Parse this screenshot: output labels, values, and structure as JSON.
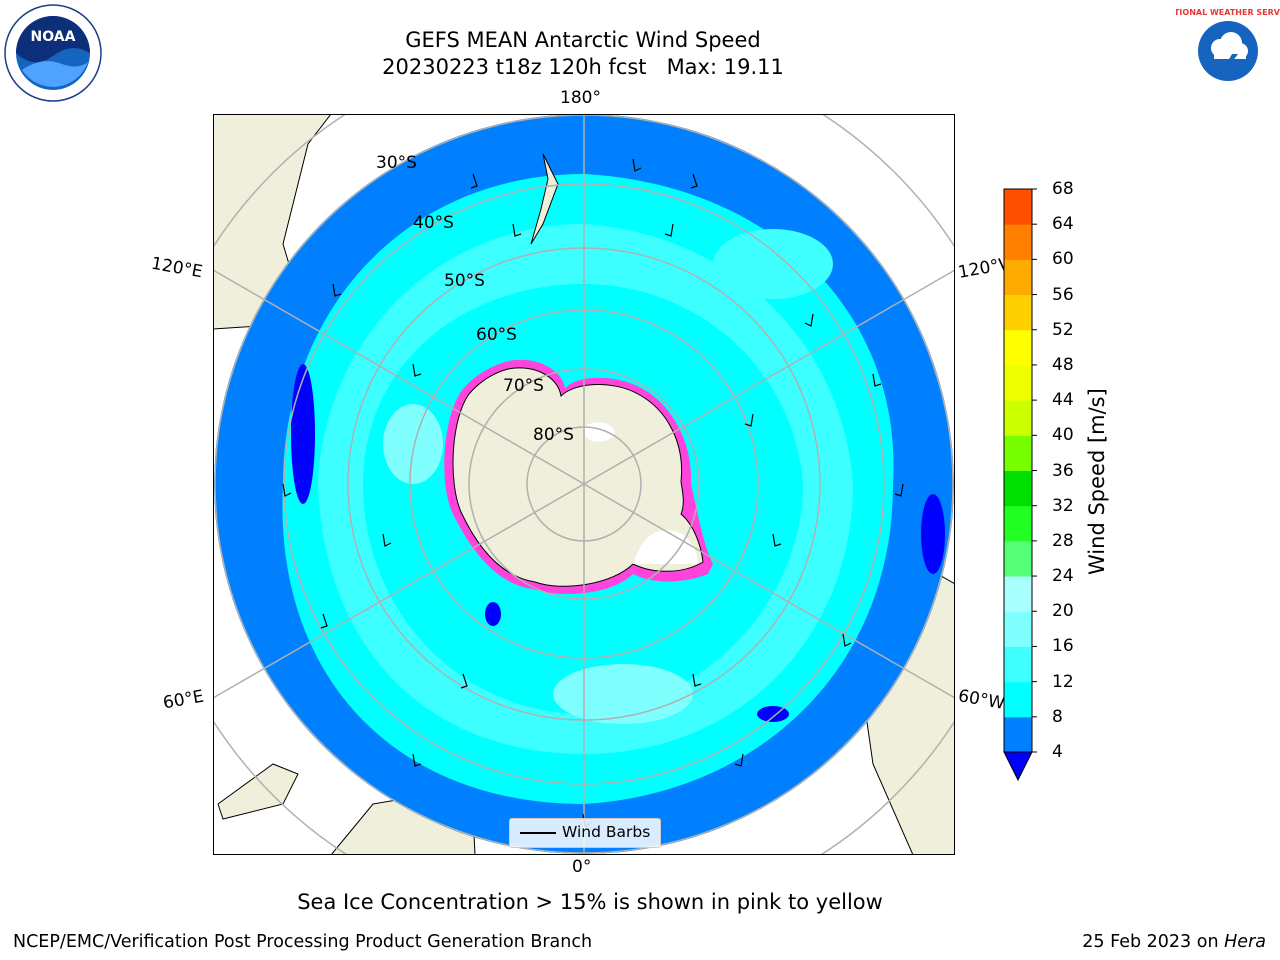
{
  "title_line1": "GEFS MEAN Antarctic Wind Speed",
  "title_line2": "20230223 t18z 120h fcst   Max: 19.11",
  "longitude_labels": {
    "top": "180°",
    "bottom": "0°",
    "left_upper": "120°E",
    "left_lower": "60°E",
    "right_upper": "120°W",
    "right_lower": "60°W"
  },
  "latitude_labels": [
    "30°S",
    "40°S",
    "50°S",
    "60°S",
    "70°S",
    "80°S"
  ],
  "legend": {
    "label": "Wind Barbs"
  },
  "colorbar": {
    "title": "Wind Speed [m/s]",
    "ticks": [
      "4",
      "8",
      "12",
      "16",
      "20",
      "24",
      "28",
      "32",
      "36",
      "40",
      "44",
      "48",
      "52",
      "56",
      "60",
      "64",
      "68"
    ],
    "colors": [
      "#0080ff",
      "#00ffff",
      "#40ffff",
      "#80ffff",
      "#aaffff",
      "#55ff77",
      "#22ff22",
      "#00e000",
      "#77ff00",
      "#ccff00",
      "#eeff00",
      "#ffff00",
      "#ffd000",
      "#ffaa00",
      "#ff8000",
      "#ff5000",
      "#ff2000",
      "#ff0000"
    ],
    "under_color": "#0000ff"
  },
  "caption": "Sea Ice Concentration > 15% is shown in pink to yellow",
  "footer_left": "NCEP/EMC/Verification Post Processing Product Generation Branch",
  "footer_right_date": "25 Feb 2023 on",
  "footer_right_host": "Hera",
  "logos": {
    "left": "NOAA",
    "right": "NATIONAL WEATHER SERVICE"
  }
}
